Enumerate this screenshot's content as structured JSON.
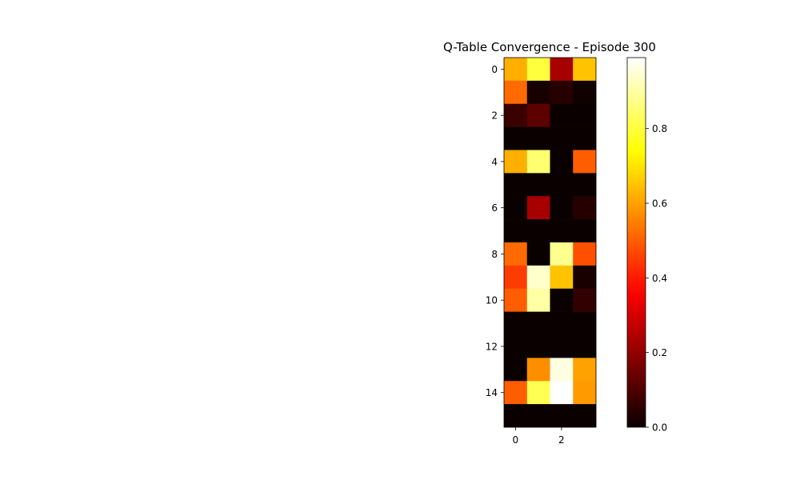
{
  "chart_data": {
    "type": "heatmap",
    "title": "Q-Table Convergence - Episode 300",
    "xlabel": "",
    "ylabel": "",
    "colormap": "hot",
    "vmin": 0.0,
    "vmax": 0.99,
    "x_ticks": [
      0,
      2
    ],
    "y_ticks": [
      0,
      2,
      4,
      6,
      8,
      10,
      12,
      14
    ],
    "colorbar_ticks": [
      0.0,
      0.2,
      0.4,
      0.6,
      0.8
    ],
    "colorbar_tick_labels": [
      "0.0",
      "0.2",
      "0.4",
      "0.6",
      "0.8"
    ],
    "x_tick_labels": [
      "0",
      "2"
    ],
    "y_tick_labels": [
      "0",
      "2",
      "4",
      "6",
      "8",
      "10",
      "12",
      "14"
    ],
    "values": [
      [
        0.62,
        0.8,
        0.23,
        0.65
      ],
      [
        0.52,
        0.02,
        0.04,
        0.01
      ],
      [
        0.07,
        0.12,
        0.0,
        0.0
      ],
      [
        0.0,
        0.0,
        0.0,
        0.0
      ],
      [
        0.62,
        0.85,
        0.0,
        0.5
      ],
      [
        0.0,
        0.0,
        0.0,
        0.0
      ],
      [
        0.0,
        0.23,
        0.0,
        0.04
      ],
      [
        0.0,
        0.0,
        0.0,
        0.0
      ],
      [
        0.52,
        0.0,
        0.88,
        0.48
      ],
      [
        0.45,
        0.94,
        0.65,
        0.02
      ],
      [
        0.5,
        0.9,
        0.0,
        0.06
      ],
      [
        0.0,
        0.0,
        0.0,
        0.0
      ],
      [
        0.0,
        0.0,
        0.0,
        0.0
      ],
      [
        0.0,
        0.57,
        0.96,
        0.6
      ],
      [
        0.5,
        0.82,
        0.99,
        0.59
      ],
      [
        0.0,
        0.0,
        0.0,
        0.0
      ]
    ]
  }
}
